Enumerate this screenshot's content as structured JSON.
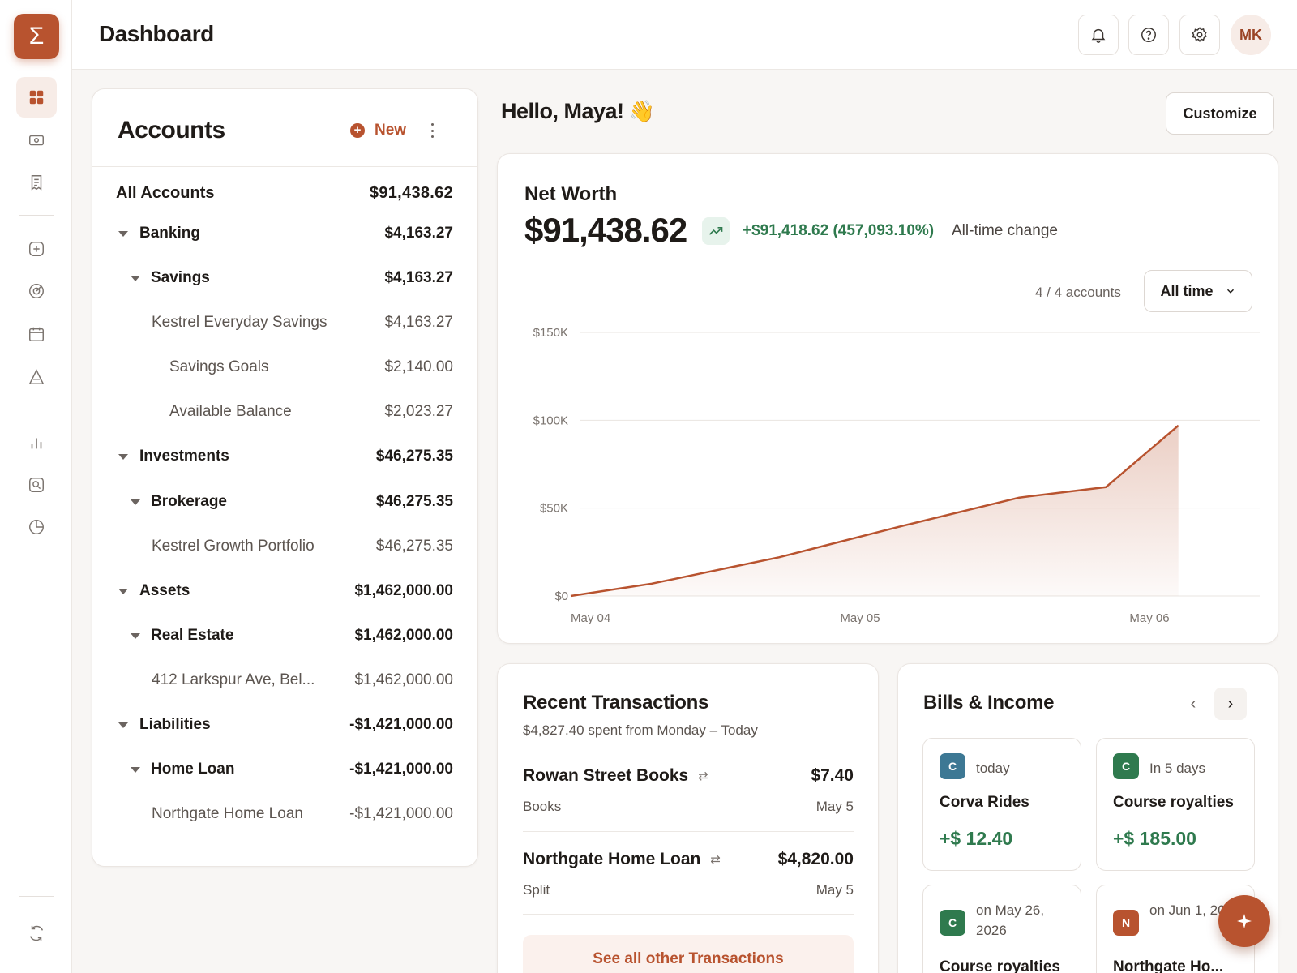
{
  "header": {
    "title": "Dashboard",
    "avatar_initials": "MK"
  },
  "sidebar": {
    "logo_glyph": "Σ",
    "items": [
      {
        "icon": "grid-icon",
        "active": true
      },
      {
        "icon": "money-icon"
      },
      {
        "icon": "receipt-icon"
      },
      {
        "icon": "plus-square-icon"
      },
      {
        "icon": "target-icon"
      },
      {
        "icon": "calendar-icon"
      },
      {
        "icon": "triangle-icon"
      },
      {
        "icon": "bar-chart-icon"
      },
      {
        "icon": "search-box-icon"
      },
      {
        "icon": "pie-chart-icon"
      },
      {
        "icon": "sync-icon"
      }
    ]
  },
  "accounts": {
    "title": "Accounts",
    "new_label": "New",
    "all_label": "All Accounts",
    "all_amount": "$91,438.62",
    "rows": [
      {
        "name": "Banking",
        "amount": "$4,163.27",
        "level": 0
      },
      {
        "name": "Savings",
        "amount": "$4,163.27",
        "level": 1
      },
      {
        "name": "Kestrel Everyday Savings",
        "amount": "$4,163.27",
        "level": 2
      },
      {
        "name": "Savings Goals",
        "amount": "$2,140.00",
        "level": 3
      },
      {
        "name": "Available Balance",
        "amount": "$2,023.27",
        "level": 3
      },
      {
        "name": "Investments",
        "amount": "$46,275.35",
        "level": 0
      },
      {
        "name": "Brokerage",
        "amount": "$46,275.35",
        "level": 1
      },
      {
        "name": "Kestrel Growth Portfolio",
        "amount": "$46,275.35",
        "level": 2
      },
      {
        "name": "Assets",
        "amount": "$1,462,000.00",
        "level": 0
      },
      {
        "name": "Real Estate",
        "amount": "$1,462,000.00",
        "level": 1
      },
      {
        "name": "412 Larkspur Ave, Bel...",
        "amount": "$1,462,000.00",
        "level": 2
      },
      {
        "name": "Liabilities",
        "amount": "-$1,421,000.00",
        "level": 0
      },
      {
        "name": "Home Loan",
        "amount": "-$1,421,000.00",
        "level": 1
      },
      {
        "name": "Northgate Home Loan",
        "amount": "-$1,421,000.00",
        "level": 2
      }
    ]
  },
  "greeting": {
    "text": "Hello, Maya!",
    "emoji": "👋",
    "customize_label": "Customize"
  },
  "networth": {
    "label": "Net Worth",
    "value": "$91,438.62",
    "change": "+$91,418.62 (457,093.10%)",
    "change_label": "All-time change",
    "accounts_count": "4 / 4 accounts",
    "range_label": "All time",
    "colors": {
      "line": "#b8532f",
      "positive": "#2f7a4e"
    }
  },
  "chart_data": {
    "type": "area",
    "title": "",
    "xlabel": "",
    "ylabel": "",
    "x_ticks": [
      "May 04",
      "May 05",
      "May 06"
    ],
    "y_ticks": [
      "$0",
      "$50K",
      "$100K",
      "$150K"
    ],
    "ylim": [
      0,
      150000
    ],
    "xlim": [
      0,
      2
    ],
    "x": [
      0,
      0.28,
      0.72,
      1.15,
      1.55,
      1.85,
      2.1
    ],
    "values": [
      20,
      7000,
      22000,
      40000,
      56000,
      62000,
      97000
    ],
    "grid": true,
    "legend": "none"
  },
  "recent": {
    "title": "Recent Transactions",
    "subtitle": "$4,827.40 spent from Monday – Today",
    "transactions": [
      {
        "name": "Rowan Street Books",
        "amount": "$7.40",
        "category": "Books",
        "date": "May 5"
      },
      {
        "name": "Northgate Home Loan",
        "amount": "$4,820.00",
        "category": "Split",
        "date": "May 5"
      }
    ],
    "see_all_label": "See all other Transactions"
  },
  "bills": {
    "title": "Bills & Income",
    "items": [
      {
        "badge": "C",
        "badge_color": "#3d7894",
        "when": "today",
        "name": "Corva Rides",
        "amount": "+$ 12.40"
      },
      {
        "badge": "C",
        "badge_color": "#2f7a4e",
        "when": "In 5 days",
        "name": "Course royalties",
        "amount": "+$ 185.00"
      },
      {
        "badge": "C",
        "badge_color": "#2f7a4e",
        "when": "on May 26, 2026",
        "name": "Course royalties",
        "amount": ""
      },
      {
        "badge": "N",
        "badge_color": "#b8532f",
        "when": "on Jun 1, 2026",
        "name": "Northgate Ho...",
        "amount": ""
      }
    ]
  }
}
